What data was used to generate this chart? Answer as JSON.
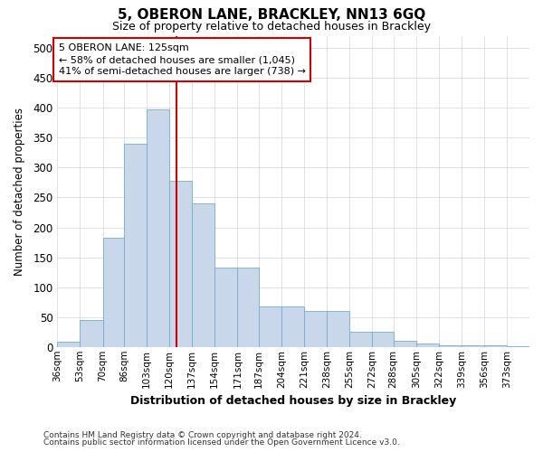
{
  "title": "5, OBERON LANE, BRACKLEY, NN13 6GQ",
  "subtitle": "Size of property relative to detached houses in Brackley",
  "xlabel": "Distribution of detached houses by size in Brackley",
  "ylabel": "Number of detached properties",
  "footnote1": "Contains HM Land Registry data © Crown copyright and database right 2024.",
  "footnote2": "Contains public sector information licensed under the Open Government Licence v3.0.",
  "annotation_line1": "5 OBERON LANE: 125sqm",
  "annotation_line2": "← 58% of detached houses are smaller (1,045)",
  "annotation_line3": "41% of semi-detached houses are larger (738) →",
  "property_size": 125,
  "bar_color": "#c8d8ea",
  "bar_edge_color": "#7aaac8",
  "vline_color": "#cc0000",
  "annotation_box_color": "#ffffff",
  "annotation_box_edge": "#cc0000",
  "grid_color": "#d0d8e0",
  "bins": [
    36,
    53,
    70,
    86,
    103,
    120,
    137,
    154,
    171,
    187,
    204,
    221,
    238,
    255,
    272,
    288,
    305,
    322,
    339,
    356,
    373
  ],
  "bin_labels": [
    "36sqm",
    "53sqm",
    "70sqm",
    "86sqm",
    "103sqm",
    "120sqm",
    "137sqm",
    "154sqm",
    "171sqm",
    "187sqm",
    "204sqm",
    "221sqm",
    "238sqm",
    "255sqm",
    "272sqm",
    "288sqm",
    "305sqm",
    "322sqm",
    "339sqm",
    "356sqm",
    "373sqm"
  ],
  "counts": [
    8,
    45,
    183,
    340,
    398,
    278,
    240,
    133,
    133,
    68,
    68,
    60,
    60,
    25,
    25,
    10,
    5,
    3,
    2,
    2,
    1
  ],
  "ylim": [
    0,
    520
  ],
  "yticks": [
    0,
    50,
    100,
    150,
    200,
    250,
    300,
    350,
    400,
    450,
    500
  ]
}
